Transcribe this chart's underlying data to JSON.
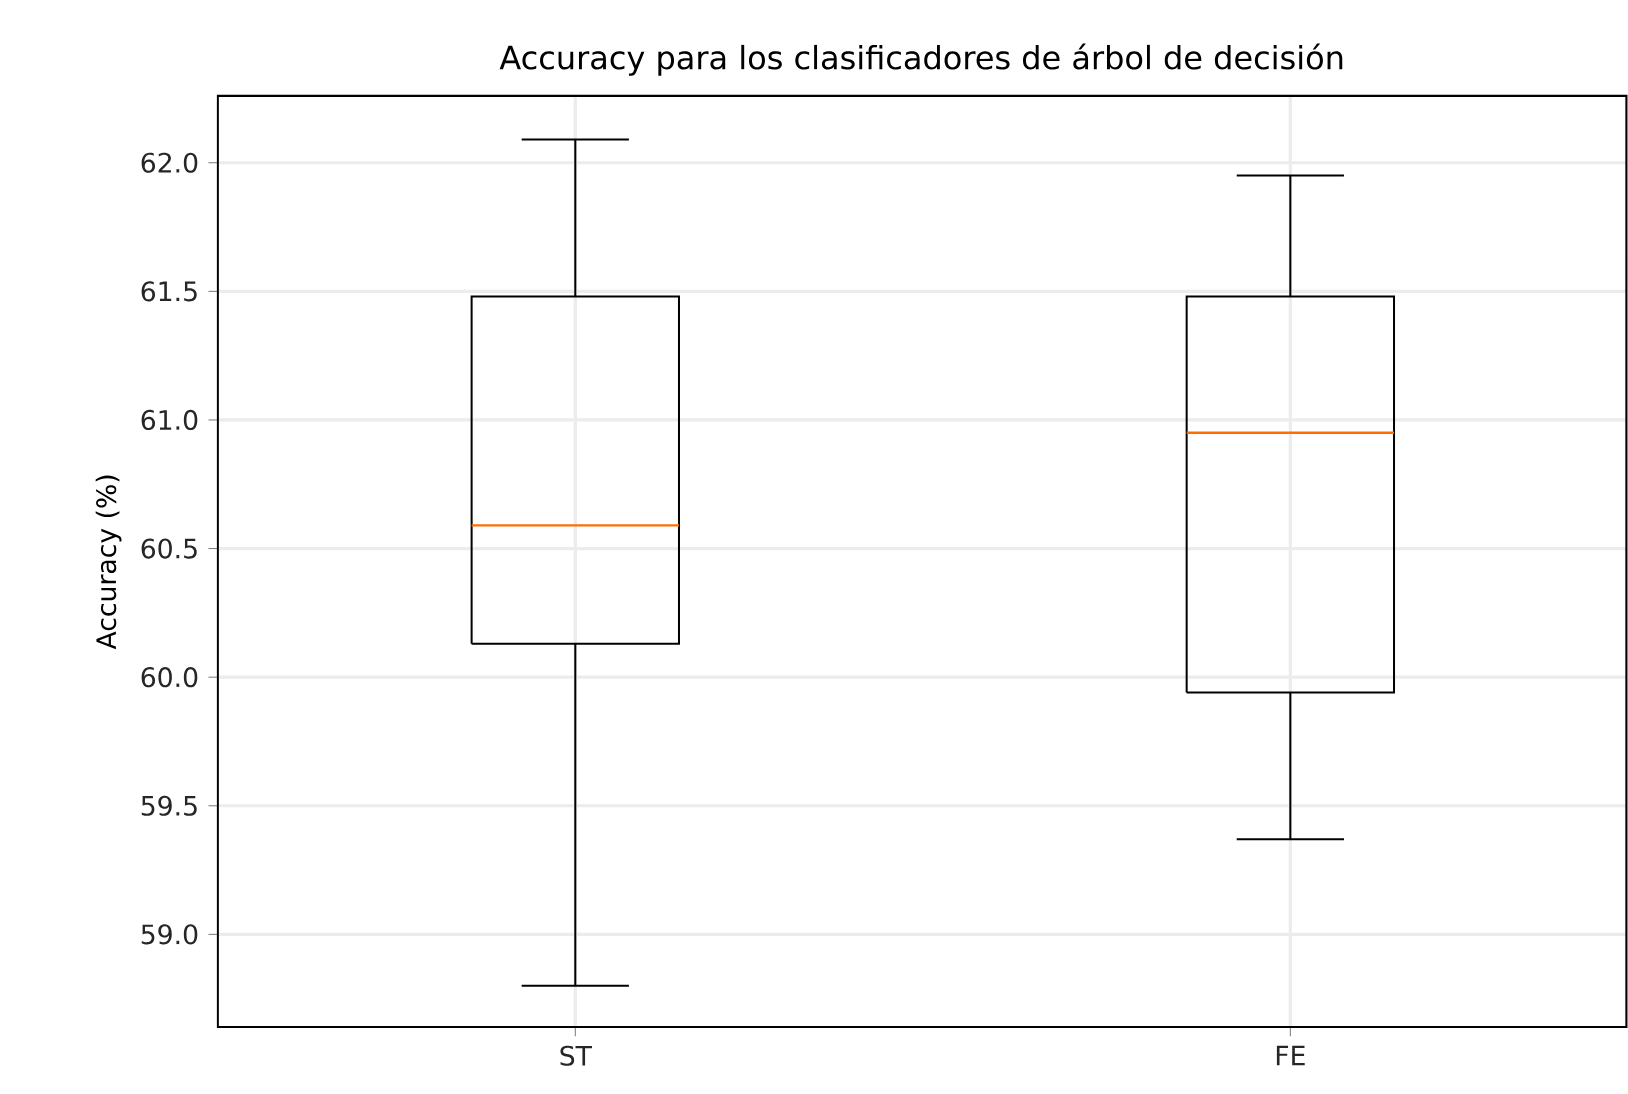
{
  "chart_data": {
    "type": "box",
    "title": "Accuracy para los clasificadores de árbol de decisión",
    "ylabel": "Accuracy (%)",
    "categories": [
      "ST",
      "FE"
    ],
    "boxes": [
      {
        "low": 58.8,
        "q1": 60.13,
        "median": 60.59,
        "q3": 61.48,
        "high": 62.09
      },
      {
        "low": 59.37,
        "q1": 59.94,
        "median": 60.95,
        "q3": 61.48,
        "high": 61.95
      }
    ],
    "ylim": [
      58.64,
      62.26
    ],
    "yticks": [
      {
        "value": 59,
        "label": "59.0"
      },
      {
        "value": 59.5,
        "label": "59.5"
      },
      {
        "value": 60,
        "label": "60.0"
      },
      {
        "value": 60.5,
        "label": "60.5"
      },
      {
        "value": 61,
        "label": "61.0"
      },
      {
        "value": 61.5,
        "label": "61.5"
      },
      {
        "value": 62,
        "label": "62.0"
      }
    ],
    "grid": true
  }
}
